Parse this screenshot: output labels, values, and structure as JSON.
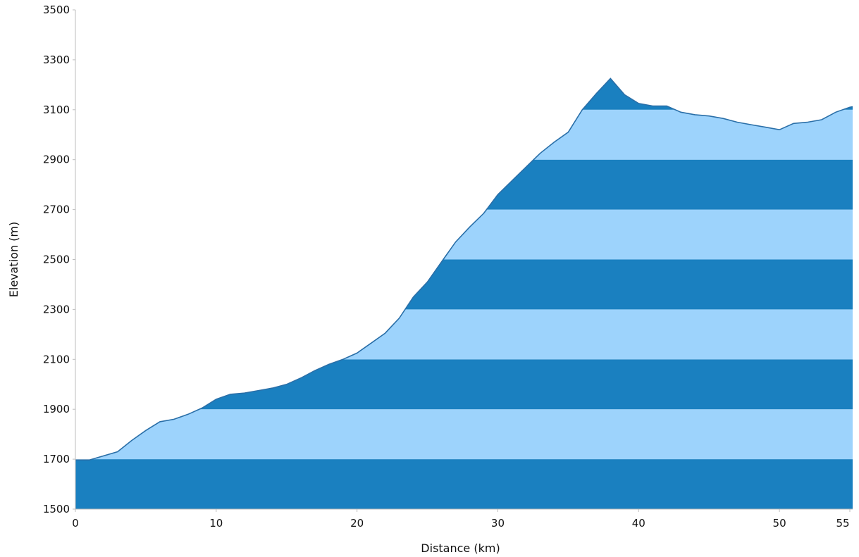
{
  "chart_data": {
    "type": "area",
    "title": "",
    "xlabel": "Distance (km)",
    "ylabel": "Elevation (m)",
    "xlim": [
      0,
      55.2
    ],
    "ylim": [
      1500,
      3500
    ],
    "xticks": [
      0,
      10,
      20,
      30,
      40,
      50,
      55
    ],
    "yticks": [
      1500,
      1700,
      1900,
      2100,
      2300,
      2500,
      2700,
      2900,
      3100,
      3300,
      3500
    ],
    "grid": false,
    "band_step": 200,
    "colors": {
      "band_dark": "#1a80c0",
      "band_light": "#9dd3fc",
      "outline": "#2a6fa8",
      "axis": "#bdbdbd"
    },
    "series": [
      {
        "x": [
          0,
          1,
          3,
          4,
          5,
          6,
          7,
          8,
          9,
          10,
          11,
          12,
          13,
          14,
          15,
          16,
          17,
          18,
          19,
          20,
          21,
          22,
          23,
          24,
          25,
          26,
          27,
          28,
          29,
          30,
          31,
          32,
          33,
          34,
          35,
          36,
          37,
          38,
          39,
          40,
          41,
          42,
          43,
          44,
          45,
          46,
          47,
          48,
          49,
          50,
          51,
          52,
          53,
          54,
          55,
          55.2
        ],
        "y": [
          1697,
          1697,
          1730,
          1775,
          1815,
          1850,
          1860,
          1880,
          1905,
          1940,
          1960,
          1965,
          1975,
          1985,
          2000,
          2025,
          2055,
          2080,
          2100,
          2125,
          2165,
          2205,
          2265,
          2350,
          2410,
          2490,
          2570,
          2630,
          2685,
          2760,
          2815,
          2870,
          2925,
          2970,
          3010,
          3100,
          3165,
          3225,
          3160,
          3125,
          3115,
          3115,
          3090,
          3080,
          3075,
          3065,
          3050,
          3040,
          3030,
          3020,
          3045,
          3050,
          3060,
          3090,
          3110,
          3112
        ]
      }
    ]
  }
}
